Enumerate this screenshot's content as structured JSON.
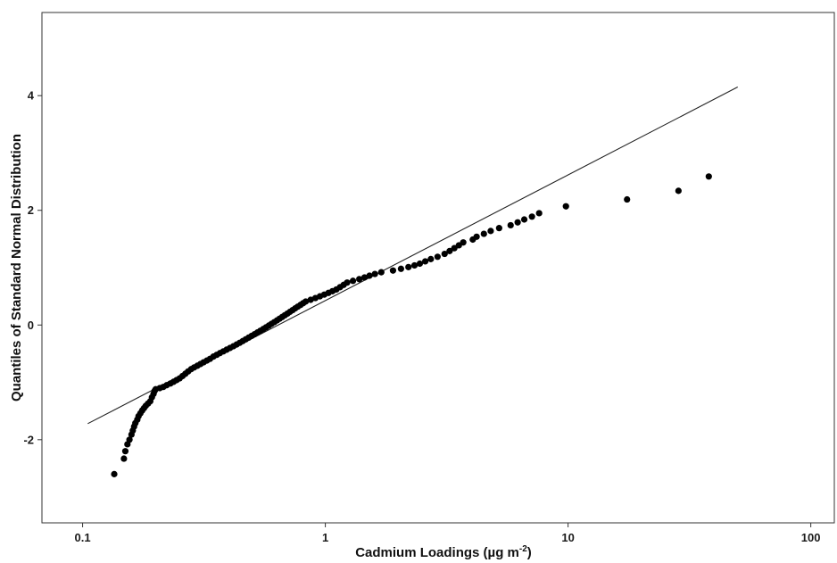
{
  "chart_data": {
    "type": "scatter",
    "title": "",
    "xlabel": "Cadmium Loadings (µg m",
    "xlabel_superscript": "-2",
    "xlabel_close": ")",
    "ylabel": "Quantiles of Standard Normal Distribution",
    "x_scale": "log",
    "xlim": [
      0.068,
      125
    ],
    "ylim": [
      -3.45,
      5.45
    ],
    "x_ticks": [
      {
        "value": 0.1,
        "label": "0.1"
      },
      {
        "value": 1,
        "label": "1"
      },
      {
        "value": 10,
        "label": "10"
      },
      {
        "value": 100,
        "label": "100"
      }
    ],
    "y_ticks": [
      {
        "value": 4,
        "label": "4"
      },
      {
        "value": 2,
        "label": "2"
      },
      {
        "value": 0,
        "label": "0"
      },
      {
        "value": -2,
        "label": "-2"
      }
    ],
    "grid": false,
    "legend": "none",
    "marker_color": "#000000",
    "reference_line": {
      "x": [
        0.105,
        50
      ],
      "y": [
        -1.72,
        4.15
      ]
    },
    "points": [
      [
        0.135,
        -2.6
      ],
      [
        0.148,
        -2.33
      ],
      [
        0.15,
        -2.2
      ],
      [
        0.153,
        -2.08
      ],
      [
        0.156,
        -2.0
      ],
      [
        0.159,
        -1.91
      ],
      [
        0.161,
        -1.84
      ],
      [
        0.163,
        -1.77
      ],
      [
        0.165,
        -1.71
      ],
      [
        0.168,
        -1.65
      ],
      [
        0.17,
        -1.59
      ],
      [
        0.173,
        -1.54
      ],
      [
        0.176,
        -1.49
      ],
      [
        0.179,
        -1.45
      ],
      [
        0.182,
        -1.41
      ],
      [
        0.186,
        -1.37
      ],
      [
        0.19,
        -1.33
      ],
      [
        0.193,
        -1.26
      ],
      [
        0.196,
        -1.2
      ],
      [
        0.198,
        -1.15
      ],
      [
        0.2,
        -1.12
      ],
      [
        0.208,
        -1.1
      ],
      [
        0.215,
        -1.08
      ],
      [
        0.222,
        -1.05
      ],
      [
        0.23,
        -1.02
      ],
      [
        0.237,
        -0.99
      ],
      [
        0.244,
        -0.96
      ],
      [
        0.251,
        -0.93
      ],
      [
        0.258,
        -0.89
      ],
      [
        0.265,
        -0.85
      ],
      [
        0.272,
        -0.81
      ],
      [
        0.28,
        -0.77
      ],
      [
        0.288,
        -0.74
      ],
      [
        0.297,
        -0.71
      ],
      [
        0.306,
        -0.68
      ],
      [
        0.315,
        -0.65
      ],
      [
        0.325,
        -0.62
      ],
      [
        0.335,
        -0.59
      ],
      [
        0.346,
        -0.55
      ],
      [
        0.357,
        -0.52
      ],
      [
        0.368,
        -0.49
      ],
      [
        0.38,
        -0.46
      ],
      [
        0.392,
        -0.43
      ],
      [
        0.405,
        -0.4
      ],
      [
        0.418,
        -0.37
      ],
      [
        0.431,
        -0.34
      ],
      [
        0.444,
        -0.31
      ],
      [
        0.457,
        -0.28
      ],
      [
        0.47,
        -0.25
      ],
      [
        0.483,
        -0.22
      ],
      [
        0.497,
        -0.19
      ],
      [
        0.511,
        -0.16
      ],
      [
        0.525,
        -0.13
      ],
      [
        0.54,
        -0.1
      ],
      [
        0.555,
        -0.07
      ],
      [
        0.57,
        -0.04
      ],
      [
        0.585,
        -0.01
      ],
      [
        0.6,
        0.02
      ],
      [
        0.616,
        0.05
      ],
      [
        0.632,
        0.08
      ],
      [
        0.648,
        0.11
      ],
      [
        0.664,
        0.14
      ],
      [
        0.681,
        0.17
      ],
      [
        0.698,
        0.2
      ],
      [
        0.715,
        0.23
      ],
      [
        0.733,
        0.26
      ],
      [
        0.751,
        0.29
      ],
      [
        0.77,
        0.32
      ],
      [
        0.79,
        0.35
      ],
      [
        0.81,
        0.38
      ],
      [
        0.83,
        0.41
      ],
      [
        0.87,
        0.44
      ],
      [
        0.91,
        0.47
      ],
      [
        0.95,
        0.5
      ],
      [
        0.99,
        0.53
      ],
      [
        1.03,
        0.56
      ],
      [
        1.07,
        0.59
      ],
      [
        1.11,
        0.62
      ],
      [
        1.15,
        0.66
      ],
      [
        1.19,
        0.7
      ],
      [
        1.23,
        0.74
      ],
      [
        1.3,
        0.77
      ],
      [
        1.38,
        0.8
      ],
      [
        1.45,
        0.83
      ],
      [
        1.52,
        0.86
      ],
      [
        1.6,
        0.89
      ],
      [
        1.7,
        0.92
      ],
      [
        1.9,
        0.95
      ],
      [
        2.05,
        0.98
      ],
      [
        2.2,
        1.01
      ],
      [
        2.33,
        1.04
      ],
      [
        2.45,
        1.07
      ],
      [
        2.58,
        1.11
      ],
      [
        2.72,
        1.15
      ],
      [
        2.9,
        1.19
      ],
      [
        3.1,
        1.24
      ],
      [
        3.25,
        1.29
      ],
      [
        3.4,
        1.34
      ],
      [
        3.55,
        1.39
      ],
      [
        3.7,
        1.44
      ],
      [
        4.05,
        1.49
      ],
      [
        4.2,
        1.54
      ],
      [
        4.5,
        1.59
      ],
      [
        4.8,
        1.64
      ],
      [
        5.2,
        1.69
      ],
      [
        5.8,
        1.74
      ],
      [
        6.2,
        1.79
      ],
      [
        6.6,
        1.84
      ],
      [
        7.1,
        1.89
      ],
      [
        7.6,
        1.95
      ],
      [
        9.8,
        2.07
      ],
      [
        17.5,
        2.19
      ],
      [
        28.5,
        2.34
      ],
      [
        38.0,
        2.59
      ]
    ]
  }
}
